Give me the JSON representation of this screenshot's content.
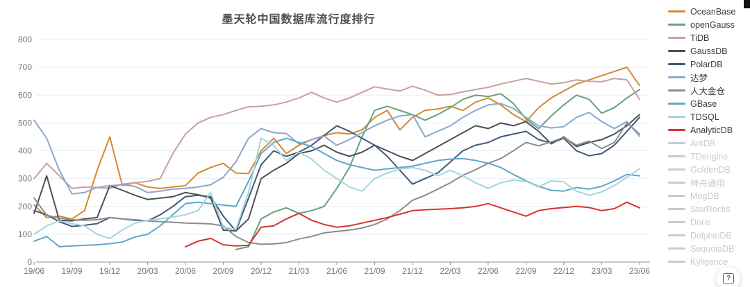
{
  "title": "墨天轮中国数据库流行度排行",
  "help": {
    "glyph": "?"
  },
  "chart_data": {
    "type": "line",
    "title": "墨天轮中国数据库流行度排行",
    "xlabel": "",
    "ylabel": "",
    "ylim": [
      0,
      800
    ],
    "y_ticks": [
      "0",
      "100",
      "200",
      "300",
      "400",
      "500",
      "600",
      "700",
      "800"
    ],
    "grid": true,
    "legend_position": "right",
    "x": [
      "19/06",
      "19/07",
      "19/08",
      "19/09",
      "19/10",
      "19/11",
      "19/12",
      "20/01",
      "20/02",
      "20/03",
      "20/04",
      "20/05",
      "20/06",
      "20/07",
      "20/08",
      "20/09",
      "20/10",
      "20/11",
      "20/12",
      "21/01",
      "21/02",
      "21/03",
      "21/04",
      "21/05",
      "21/06",
      "21/07",
      "21/08",
      "21/09",
      "21/10",
      "21/11",
      "21/12",
      "22/01",
      "22/02",
      "22/03",
      "22/04",
      "22/05",
      "22/06",
      "22/07",
      "22/08",
      "22/09",
      "22/10",
      "22/11",
      "22/12",
      "23/01",
      "23/02",
      "23/03",
      "23/04",
      "23/05",
      "23/06"
    ],
    "x_tick_labels": [
      "19/06",
      "19/09",
      "19/12",
      "20/03",
      "20/06",
      "20/09",
      "20/12",
      "21/03",
      "21/06",
      "21/09",
      "21/12",
      "22/03",
      "22/06",
      "22/09",
      "22/12",
      "23/03",
      "23/06"
    ],
    "x_tick_every": 3,
    "series": [
      {
        "name": "OceanBase",
        "color": "#D7882D",
        "active": true,
        "values": [
          205,
          160,
          165,
          155,
          185,
          330,
          450,
          275,
          285,
          270,
          265,
          270,
          275,
          320,
          340,
          355,
          320,
          318,
          400,
          445,
          390,
          420,
          440,
          455,
          465,
          460,
          475,
          520,
          545,
          475,
          520,
          545,
          550,
          560,
          545,
          575,
          590,
          565,
          530,
          505,
          555,
          590,
          615,
          640,
          655,
          670,
          685,
          700,
          635
        ]
      },
      {
        "name": "openGauss",
        "color": "#65A17D",
        "active": true,
        "values": [
          null,
          null,
          null,
          null,
          null,
          null,
          null,
          null,
          null,
          null,
          null,
          null,
          null,
          null,
          null,
          null,
          45,
          55,
          155,
          180,
          195,
          175,
          185,
          200,
          265,
          340,
          450,
          545,
          560,
          545,
          530,
          510,
          530,
          555,
          585,
          600,
          595,
          605,
          570,
          515,
          480,
          525,
          565,
          600,
          585,
          535,
          555,
          590,
          620
        ]
      },
      {
        "name": "TiDB",
        "color": "#C9A098",
        "active": true,
        "values": [
          300,
          355,
          310,
          265,
          270,
          268,
          265,
          280,
          285,
          290,
          300,
          390,
          460,
          500,
          520,
          530,
          545,
          558,
          560,
          565,
          575,
          590,
          610,
          590,
          575,
          590,
          610,
          630,
          622,
          615,
          632,
          618,
          600,
          602,
          612,
          620,
          628,
          640,
          650,
          660,
          650,
          640,
          645,
          655,
          650,
          648,
          660,
          655,
          585
        ]
      },
      {
        "name": "GaussDB",
        "color": "#4E4E56",
        "active": true,
        "values": [
          175,
          310,
          150,
          148,
          155,
          160,
          275,
          258,
          240,
          225,
          230,
          235,
          250,
          242,
          230,
          115,
          112,
          155,
          300,
          330,
          355,
          390,
          400,
          420,
          395,
          380,
          395,
          420,
          400,
          380,
          365,
          390,
          415,
          440,
          465,
          490,
          480,
          500,
          490,
          505,
          470,
          425,
          450,
          415,
          430,
          440,
          460,
          490,
          530
        ]
      },
      {
        "name": "PolarDB",
        "color": "#3E5A78",
        "active": true,
        "values": [
          185,
          170,
          145,
          128,
          132,
          138,
          160,
          155,
          150,
          148,
          170,
          200,
          235,
          240,
          235,
          165,
          112,
          230,
          350,
          400,
          380,
          395,
          420,
          455,
          490,
          470,
          445,
          420,
          380,
          330,
          280,
          300,
          320,
          360,
          400,
          420,
          430,
          450,
          460,
          470,
          440,
          428,
          445,
          400,
          382,
          390,
          420,
          470,
          520
        ]
      },
      {
        "name": "达梦",
        "color": "#8CA7CE",
        "active": true,
        "values": [
          510,
          445,
          330,
          245,
          250,
          268,
          275,
          278,
          272,
          250,
          255,
          262,
          265,
          270,
          278,
          305,
          360,
          445,
          480,
          465,
          462,
          425,
          440,
          452,
          420,
          440,
          465,
          490,
          510,
          525,
          530,
          450,
          470,
          490,
          520,
          545,
          565,
          570,
          552,
          520,
          490,
          482,
          487,
          520,
          538,
          505,
          480,
          505,
          452
        ]
      },
      {
        "name": "人大金仓",
        "color": "#8C8C8C",
        "active": true,
        "values": [
          230,
          168,
          158,
          152,
          150,
          152,
          160,
          155,
          152,
          148,
          145,
          143,
          140,
          139,
          137,
          130,
          92,
          70,
          64,
          65,
          70,
          83,
          92,
          105,
          110,
          115,
          122,
          135,
          155,
          185,
          222,
          240,
          262,
          285,
          312,
          332,
          355,
          372,
          400,
          430,
          418,
          432,
          448,
          420,
          435,
          408,
          430,
          500,
          460
        ]
      },
      {
        "name": "GBase",
        "color": "#61A6C8",
        "active": true,
        "values": [
          75,
          92,
          55,
          58,
          60,
          62,
          66,
          72,
          90,
          100,
          130,
          170,
          210,
          215,
          210,
          205,
          200,
          290,
          390,
          430,
          445,
          430,
          415,
          390,
          365,
          350,
          340,
          330,
          335,
          340,
          345,
          355,
          365,
          370,
          372,
          365,
          355,
          340,
          315,
          292,
          272,
          258,
          255,
          268,
          262,
          272,
          292,
          315,
          310
        ]
      },
      {
        "name": "TDSQL",
        "color": "#A3D5DC",
        "active": true,
        "values": [
          100,
          130,
          148,
          138,
          130,
          100,
          85,
          115,
          140,
          150,
          155,
          162,
          170,
          185,
          250,
          125,
          118,
          250,
          445,
          420,
          365,
          395,
          370,
          330,
          300,
          270,
          255,
          300,
          320,
          335,
          340,
          330,
          310,
          330,
          310,
          285,
          265,
          285,
          295,
          290,
          270,
          292,
          288,
          255,
          240,
          252,
          275,
          305,
          335
        ]
      },
      {
        "name": "AnalyticDB",
        "color": "#D8332C",
        "active": true,
        "values": [
          null,
          null,
          null,
          null,
          null,
          null,
          null,
          null,
          null,
          null,
          null,
          null,
          55,
          75,
          85,
          62,
          58,
          60,
          125,
          130,
          155,
          175,
          150,
          135,
          125,
          130,
          140,
          150,
          160,
          172,
          185,
          188,
          190,
          192,
          195,
          200,
          210,
          195,
          180,
          165,
          185,
          192,
          196,
          200,
          196,
          185,
          192,
          215,
          195
        ]
      },
      {
        "name": "AntDB",
        "color": "#C8CBD0",
        "active": false,
        "values": null
      },
      {
        "name": "TDengine",
        "color": "#C8CBD0",
        "active": false,
        "values": null
      },
      {
        "name": "GoldenDB",
        "color": "#C8CBD0",
        "active": false,
        "values": null
      },
      {
        "name": "神舟通用",
        "color": "#C8CBD0",
        "active": false,
        "values": null
      },
      {
        "name": "MogDB",
        "color": "#C8CBD0",
        "active": false,
        "values": null
      },
      {
        "name": "StarRocks",
        "color": "#C8CBD0",
        "active": false,
        "values": null
      },
      {
        "name": "Doris",
        "color": "#C8CBD0",
        "active": false,
        "values": null
      },
      {
        "name": "DolphinDB",
        "color": "#C8CBD0",
        "active": false,
        "values": null
      },
      {
        "name": "SequoiaDB",
        "color": "#C8CBD0",
        "active": false,
        "values": null
      },
      {
        "name": "Kyligence",
        "color": "#C8CBD0",
        "active": false,
        "values": null
      }
    ],
    "style": {
      "grid_color": "#E9EDF4",
      "axis_line_color": "#929292",
      "axis_label_color": "#71757E",
      "title_color": "#4D4D4D"
    }
  }
}
